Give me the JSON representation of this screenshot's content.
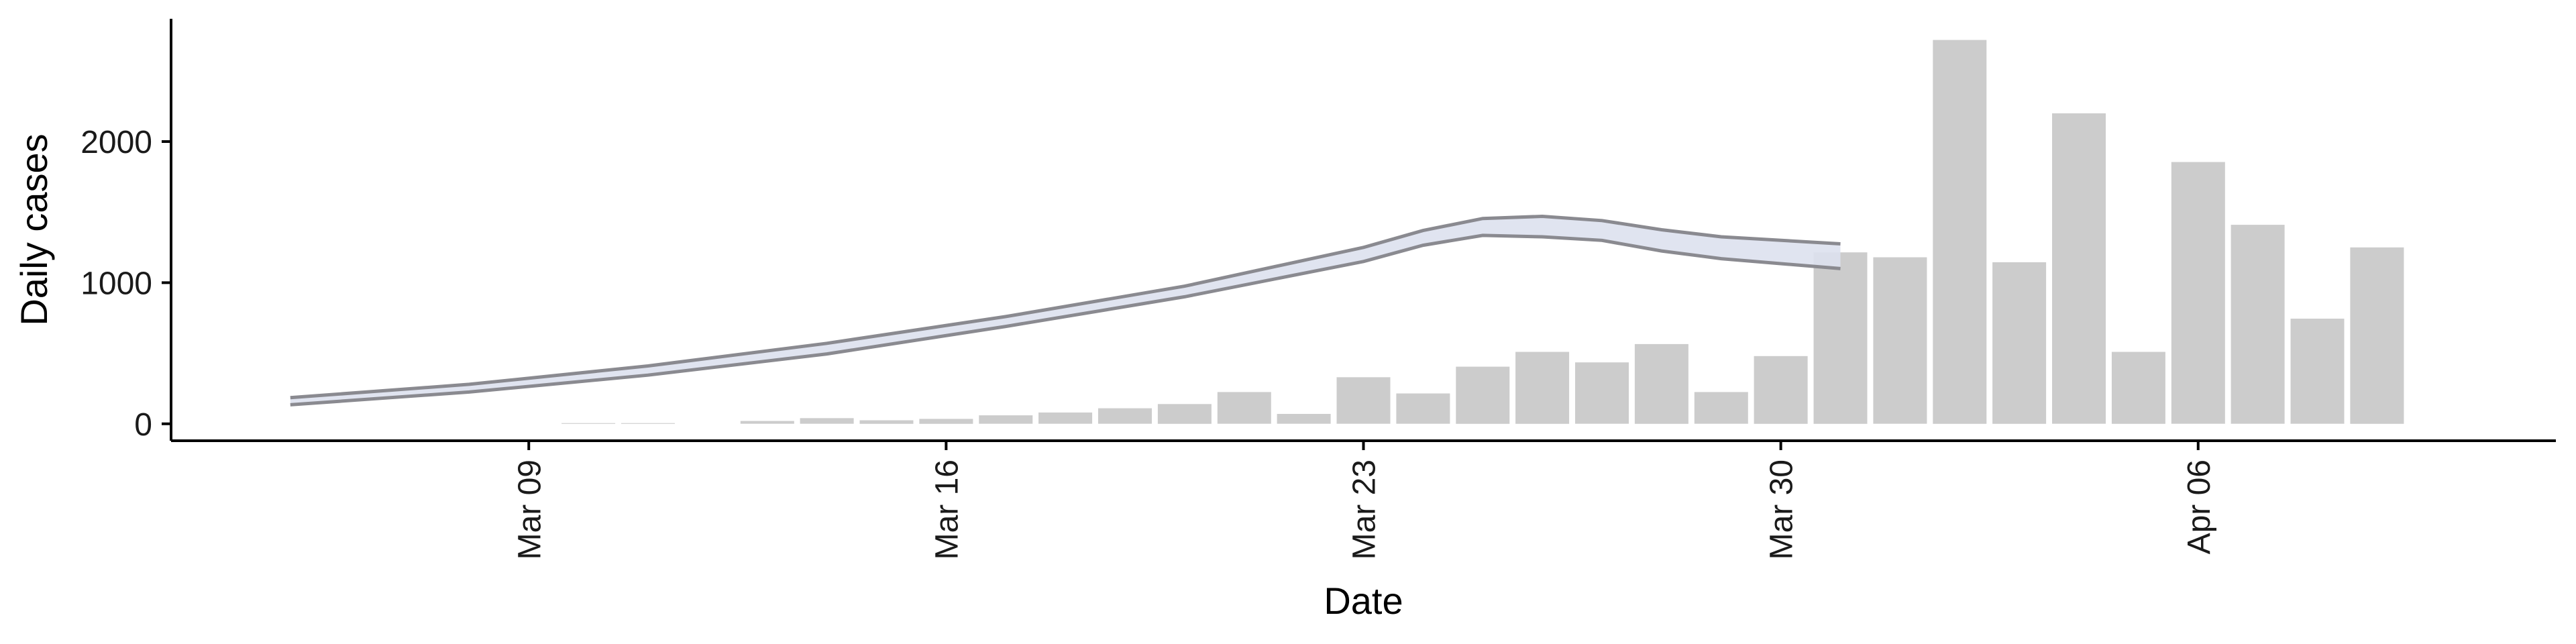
{
  "chart_data": {
    "type": "bar",
    "xlabel": "Date",
    "ylabel": "Daily cases",
    "ylim": [
      -120,
      2870
    ],
    "yticks": [
      0,
      1000,
      2000
    ],
    "xticks": [
      "2020-03-09",
      "2020-03-16",
      "2020-03-23",
      "2020-03-30",
      "2020-04-06"
    ],
    "xtick_labels": [
      "Mar 09",
      "Mar 16",
      "Mar 23",
      "Mar 30",
      "Apr 06"
    ],
    "xlim": [
      "2020-03-03",
      "2020-04-12"
    ],
    "grid": false,
    "legend": "none",
    "bars": {
      "name": "",
      "color": "#cccccc",
      "x": [
        "2020-03-10",
        "2020-03-11",
        "2020-03-12",
        "2020-03-13",
        "2020-03-14",
        "2020-03-15",
        "2020-03-16",
        "2020-03-17",
        "2020-03-18",
        "2020-03-19",
        "2020-03-20",
        "2020-03-21",
        "2020-03-22",
        "2020-03-23",
        "2020-03-24",
        "2020-03-25",
        "2020-03-26",
        "2020-03-27",
        "2020-03-28",
        "2020-03-29",
        "2020-03-30",
        "2020-03-31",
        "2020-04-01",
        "2020-04-02",
        "2020-04-03",
        "2020-04-04",
        "2020-04-05",
        "2020-04-06",
        "2020-04-07",
        "2020-04-08",
        "2020-04-09"
      ],
      "values": [
        5,
        5,
        0,
        20,
        40,
        25,
        35,
        60,
        80,
        110,
        140,
        225,
        70,
        330,
        215,
        405,
        510,
        435,
        565,
        225,
        480,
        1215,
        1180,
        2720,
        1145,
        2200,
        510,
        1855,
        1410,
        745,
        1250
      ]
    },
    "estimate": {
      "name": "",
      "band_color": "#dde1ee",
      "line_color": "#8a8a90",
      "x": [
        "2020-03-05",
        "2020-03-08",
        "2020-03-11",
        "2020-03-14",
        "2020-03-17",
        "2020-03-20",
        "2020-03-23",
        "2020-03-24",
        "2020-03-25",
        "2020-03-26",
        "2020-03-27",
        "2020-03-28",
        "2020-03-29",
        "2020-03-31"
      ],
      "upper": [
        185,
        280,
        410,
        570,
        760,
        975,
        1250,
        1370,
        1455,
        1470,
        1440,
        1375,
        1325,
        1275
      ],
      "lower": [
        135,
        225,
        345,
        495,
        690,
        900,
        1150,
        1265,
        1335,
        1325,
        1300,
        1225,
        1170,
        1100
      ]
    }
  }
}
